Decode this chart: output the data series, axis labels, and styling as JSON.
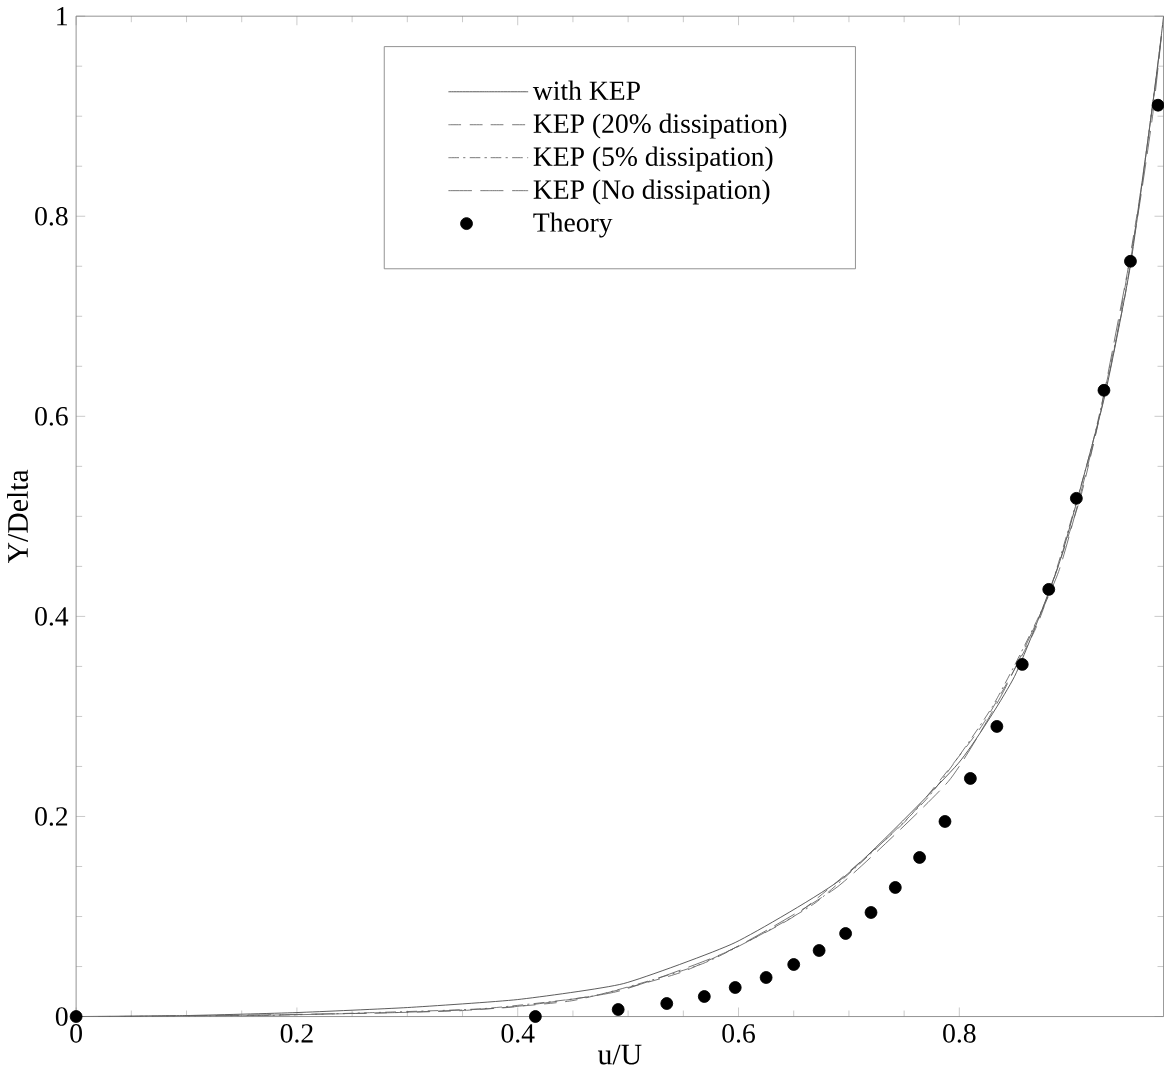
{
  "chart_data": {
    "type": "line",
    "xlabel": "u/U",
    "ylabel": "Y/Delta",
    "xlim": [
      0,
      0.985
    ],
    "ylim": [
      0,
      1
    ],
    "xticks": [
      0,
      0.2,
      0.4,
      0.6,
      0.8
    ],
    "yticks": [
      0,
      0.2,
      0.4,
      0.6,
      0.8,
      1
    ],
    "grid": false,
    "legend": "top",
    "series": [
      {
        "name": "with KEP",
        "color": "#404040",
        "line_style": "solid",
        "marker": "none",
        "x": [
          0,
          0.1,
          0.2,
          0.3,
          0.4,
          0.496,
          0.597,
          0.695,
          0.799,
          0.85,
          0.891,
          0.931,
          0.955,
          0.977,
          0.985
        ],
        "values": [
          0,
          0.001,
          0.004,
          0.009,
          0.017,
          0.033,
          0.074,
          0.139,
          0.253,
          0.34,
          0.455,
          0.617,
          0.751,
          0.927,
          1
        ]
      },
      {
        "name": "KEP (20% dissipation)",
        "color": "#606060",
        "line_style": "dashed",
        "marker": "none",
        "x": [
          0.02,
          0.15,
          0.25,
          0.35,
          0.45,
          0.55,
          0.65,
          0.75,
          0.82,
          0.87,
          0.91,
          0.94,
          0.965,
          0.982
        ],
        "values": [
          0,
          0.001,
          0.003,
          0.006,
          0.016,
          0.045,
          0.1,
          0.194,
          0.29,
          0.39,
          0.52,
          0.665,
          0.83,
          0.97
        ]
      },
      {
        "name": "KEP (5% dissipation)",
        "color": "#606060",
        "line_style": "dashdot",
        "marker": "none",
        "x": [
          0.03,
          0.17,
          0.27,
          0.37,
          0.47,
          0.57,
          0.67,
          0.77,
          0.83,
          0.88,
          0.92,
          0.95,
          0.97,
          0.983
        ],
        "values": [
          0,
          0.001,
          0.004,
          0.008,
          0.021,
          0.054,
          0.114,
          0.217,
          0.31,
          0.42,
          0.57,
          0.72,
          0.87,
          0.98
        ]
      },
      {
        "name": "KEP (No dissipation)",
        "color": "#606060",
        "line_style": "longdashed",
        "marker": "none",
        "x": [
          0.04,
          0.19,
          0.29,
          0.39,
          0.49,
          0.59,
          0.69,
          0.79,
          0.84,
          0.89,
          0.925,
          0.96,
          0.975,
          0.984
        ],
        "values": [
          0,
          0.002,
          0.004,
          0.009,
          0.025,
          0.065,
          0.13,
          0.235,
          0.325,
          0.445,
          0.59,
          0.79,
          0.9,
          0.99
        ]
      },
      {
        "name": "Theory",
        "type": "scatter",
        "color": "#000000",
        "marker": "circle",
        "x": [
          0,
          0.416,
          0.491,
          0.535,
          0.569,
          0.597,
          0.625,
          0.65,
          0.673,
          0.697,
          0.72,
          0.742,
          0.764,
          0.787,
          0.81,
          0.834,
          0.857,
          0.881,
          0.906,
          0.931,
          0.955,
          0.98
        ],
        "values": [
          0,
          0,
          0.007,
          0.013,
          0.02,
          0.029,
          0.039,
          0.052,
          0.066,
          0.083,
          0.104,
          0.129,
          0.159,
          0.195,
          0.238,
          0.29,
          0.352,
          0.427,
          0.518,
          0.626,
          0.755,
          0.911
        ]
      }
    ]
  }
}
